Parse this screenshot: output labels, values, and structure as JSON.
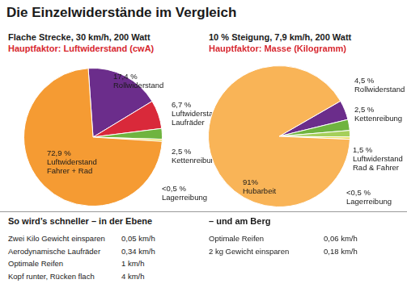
{
  "title": "Die Einzelwiderstände im Vergleich",
  "chart_data": [
    {
      "type": "pie",
      "title": "Flache Strecke, 30 km/h, 200 Watt",
      "subtitle": "Hauptfaktor: Luftwiderstand (cwA)",
      "categories": [
        "Rollwiderstand",
        "Luftwiderstand Laufräder",
        "Kettenreibung",
        "Lagerreibung",
        "Luftwiderstand Fahrer + Rad"
      ],
      "values": [
        17.4,
        6.7,
        2.5,
        0.5,
        72.9
      ],
      "value_labels": [
        "17,4 %",
        "6,7 %",
        "2,5 %",
        "<0,5 %",
        "72,9 %"
      ],
      "colors": [
        "#6b2d8b",
        "#d9293a",
        "#6fb43f",
        "#e8d94a",
        "#f59b33"
      ],
      "data_labels": true
    },
    {
      "type": "pie",
      "title": "10 % Steigung, 7,9 km/h, 200 Watt",
      "subtitle": "Hauptfaktor: Masse (Kilogramm)",
      "categories": [
        "Rollwiderstand",
        "Kettenreibung",
        "Luftwiderstand Rad & Fahrer",
        "Lagerreibung",
        "Hubarbeit"
      ],
      "values": [
        4.5,
        2.5,
        1.5,
        0.5,
        91
      ],
      "value_labels": [
        "4,5 %",
        "2,5 %",
        "1,5 %",
        "<0,5 %",
        "91%"
      ],
      "colors": [
        "#6b2d8b",
        "#6fb43f",
        "#a5cf5a",
        "#e8d94a",
        "#f9b457"
      ],
      "data_labels": true
    }
  ],
  "tables": [
    {
      "title": "So wird’s schneller – in der Ebene",
      "rows": [
        [
          "Zwei Kilo Gewicht einsparen",
          "0,05 km/h"
        ],
        [
          "Aerodynamische Laufräder",
          "0,34 km/h"
        ],
        [
          "Optimale Reifen",
          "1 km/h"
        ],
        [
          "Kopf runter, Rücken flach",
          "4 km/h"
        ]
      ]
    },
    {
      "title": "– und am Berg",
      "rows": [
        [
          "Optimale Reifen",
          "0,06 km/h"
        ],
        [
          "2 kg Gewicht einsparen",
          "0,18 km/h"
        ]
      ]
    }
  ]
}
